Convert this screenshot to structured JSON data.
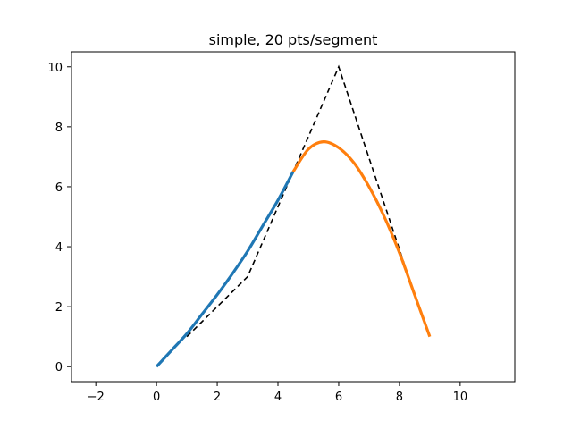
{
  "chart_data": {
    "type": "line",
    "title": "simple, 20 pts/segment",
    "xlabel": "",
    "ylabel": "",
    "xlim": [
      -2.8,
      11.8
    ],
    "ylim": [
      -0.5,
      10.5
    ],
    "xticks": [
      -2,
      0,
      2,
      4,
      6,
      8,
      10
    ],
    "yticks": [
      0,
      2,
      4,
      6,
      8,
      10
    ],
    "xtick_labels": [
      "−2",
      "0",
      "2",
      "4",
      "6",
      "8",
      "10"
    ],
    "ytick_labels": [
      "0",
      "2",
      "4",
      "6",
      "8",
      "10"
    ],
    "grid": false,
    "legend": "none",
    "series": [
      {
        "style": "dashed",
        "color": "#000000",
        "x": [
          1,
          3,
          6,
          8.3
        ],
        "y": [
          1,
          3,
          10,
          3
        ]
      },
      {
        "style": "solid",
        "color": "#1f77b4",
        "x": [
          0,
          0.5,
          1,
          1.5,
          2,
          2.5,
          3,
          3.5,
          4,
          4.5
        ],
        "y": [
          0,
          0.55,
          1.1,
          1.75,
          2.4,
          3.1,
          3.85,
          4.7,
          5.55,
          6.5
        ]
      },
      {
        "style": "solid",
        "color": "#ff7f0e",
        "x": [
          4.5,
          5,
          5.5,
          6,
          6.5,
          7,
          7.5,
          8,
          8.5,
          9
        ],
        "y": [
          6.5,
          7.25,
          7.5,
          7.3,
          6.8,
          6.0,
          5.0,
          3.8,
          2.4,
          1.0
        ]
      }
    ]
  }
}
